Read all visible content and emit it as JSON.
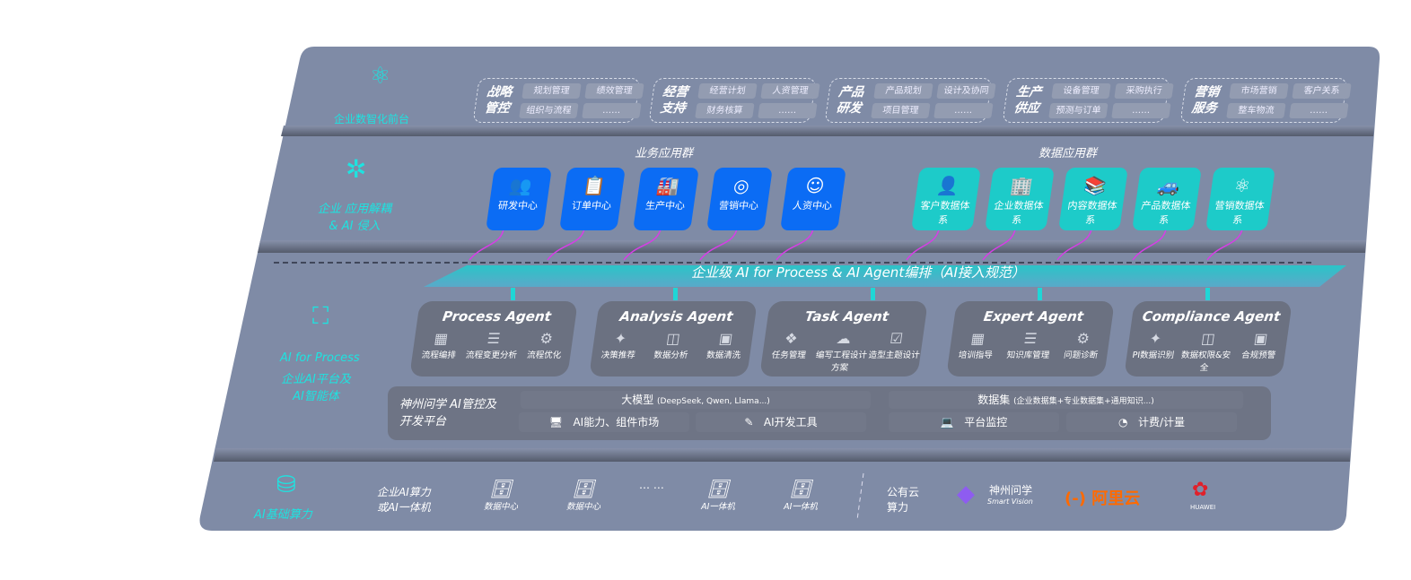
{
  "front": {
    "label": "企业数智化前台",
    "groups": [
      {
        "title": "战略管控",
        "items": [
          "规划管理",
          "绩效管理",
          "组织与流程",
          "……"
        ]
      },
      {
        "title": "经营支持",
        "items": [
          "经营计划",
          "人资管理",
          "财务核算",
          "……"
        ]
      },
      {
        "title": "产品研发",
        "items": [
          "产品规划",
          "设计及协同",
          "项目管理",
          "……"
        ]
      },
      {
        "title": "生产供应",
        "items": [
          "设备管理",
          "采购执行",
          "预测与订单",
          "……"
        ]
      },
      {
        "title": "营销服务",
        "items": [
          "市场营销",
          "客户关系",
          "整车物流",
          "……"
        ]
      }
    ]
  },
  "apps": {
    "label": "企业 应用解耦 & AI 侵入",
    "business_title": "业务应用群",
    "data_title": "数据应用群",
    "business": [
      {
        "label": "研发中心",
        "icon": "users-icon"
      },
      {
        "label": "订单中心",
        "icon": "clipboard-icon"
      },
      {
        "label": "生产中心",
        "icon": "factory-icon"
      },
      {
        "label": "营销中心",
        "icon": "target-icon"
      },
      {
        "label": "人资中心",
        "icon": "person-icon"
      }
    ],
    "data": [
      {
        "label": "客户数据体系",
        "icon": "user-icon"
      },
      {
        "label": "企业数据体系",
        "icon": "building-icon"
      },
      {
        "label": "内容数据体系",
        "icon": "books-icon"
      },
      {
        "label": "产品数据体系",
        "icon": "car-icon"
      },
      {
        "label": "营销数据体系",
        "icon": "atom-icon"
      }
    ]
  },
  "orchestration": {
    "label": "企业级 AI for Process & AI Agent编排（AI接入规范）"
  },
  "ai_layer": {
    "label_en": "AI for Process",
    "label_cn": "企业AI平台及AI智能体",
    "agents": [
      {
        "title": "Process Agent",
        "items": [
          "流程编排",
          "流程变更分析",
          "流程优化"
        ]
      },
      {
        "title": "Analysis Agent",
        "items": [
          "决策推荐",
          "数据分析",
          "数据清洗"
        ]
      },
      {
        "title": "Task Agent",
        "items": [
          "任务管理",
          "编写工程设计方案",
          "造型主题设计"
        ]
      },
      {
        "title": "Expert Agent",
        "items": [
          "培训指导",
          "知识库管理",
          "问题诊断"
        ]
      },
      {
        "title": "Compliance Agent",
        "items": [
          "PI数据识别",
          "数据权限&安全",
          "合规预警"
        ]
      }
    ],
    "platform": {
      "title": "神州问学 AI管控及开发平台",
      "model": "大模型",
      "model_note": "(DeepSeek, Qwen, Llama...)",
      "dataset": "数据集",
      "dataset_note": "(企业数据集+专业数据集+通用知识...)",
      "tools": [
        "AI能力、组件市场",
        "AI开发工具",
        "平台监控",
        "计费/计量"
      ]
    }
  },
  "infra": {
    "label": "AI基础算力",
    "enterprise": "企业AI算力或AI一体机",
    "servers": [
      "数据中心",
      "数据中心",
      "AI一体机",
      "AI一体机"
    ],
    "ellipsis": "… …",
    "cloud": "公有云算力",
    "logos": [
      "神州问学",
      "Smart Vision",
      "阿里云",
      "HUAWEI"
    ]
  },
  "colors": {
    "panel": "#7f8ba6",
    "accent": "#1ee3e0",
    "blue": "#0b6cf4",
    "teal": "#1dcbc9",
    "arrow": "#d63ee6"
  }
}
